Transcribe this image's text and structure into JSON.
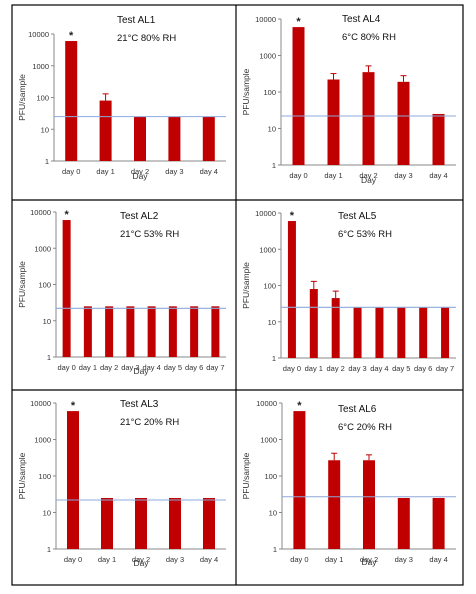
{
  "chart_data": [
    {
      "type": "bar",
      "title": "Test AL1",
      "subtitle": "21°C 80% RH",
      "xlabel": "Day",
      "ylabel": "PFU/sample",
      "yscale": "log",
      "ylim": [
        1,
        10000
      ],
      "yticks": [
        "1",
        "10",
        "100",
        "1000",
        "10000"
      ],
      "categories": [
        "day 0",
        "day 1",
        "day 2",
        "day 3",
        "day 4"
      ],
      "values": [
        6000,
        80,
        25,
        25,
        25
      ],
      "error_upper": [
        null,
        130,
        null,
        null,
        null
      ],
      "detection_limit": 25,
      "annotations": [
        {
          "category": "day 0",
          "text": "*"
        }
      ],
      "colors": {
        "bar": "#c00000",
        "limit_line": "#8ea9db"
      }
    },
    {
      "type": "bar",
      "title": "Test AL4",
      "subtitle": "6°C 80% RH",
      "xlabel": "Day",
      "ylabel": "PFU/sample",
      "yscale": "log",
      "ylim": [
        1,
        10000
      ],
      "yticks": [
        "1",
        "10",
        "100",
        "1000",
        "10000"
      ],
      "categories": [
        "day 0",
        "day 1",
        "day 2",
        "day 3",
        "day 4"
      ],
      "values": [
        6000,
        220,
        350,
        190,
        25
      ],
      "error_upper": [
        null,
        320,
        520,
        280,
        null
      ],
      "detection_limit": 22,
      "annotations": [
        {
          "category": "day 0",
          "text": "*"
        }
      ],
      "colors": {
        "bar": "#c00000",
        "limit_line": "#8ea9db"
      }
    },
    {
      "type": "bar",
      "title": "Test AL2",
      "subtitle": "21°C 53% RH",
      "xlabel": "Day",
      "ylabel": "PFU/sample",
      "yscale": "log",
      "ylim": [
        1,
        10000
      ],
      "yticks": [
        "1",
        "10",
        "100",
        "1000",
        "10000"
      ],
      "categories": [
        "day 0",
        "day 1",
        "day 2",
        "day 3",
        "day 4",
        "day 5",
        "day 6",
        "day 7"
      ],
      "values": [
        6000,
        25,
        25,
        25,
        25,
        25,
        25,
        25
      ],
      "error_upper": [
        null,
        null,
        null,
        null,
        null,
        null,
        null,
        null
      ],
      "detection_limit": 22,
      "annotations": [
        {
          "category": "day 0",
          "text": "*"
        }
      ],
      "colors": {
        "bar": "#c00000",
        "limit_line": "#8ea9db"
      }
    },
    {
      "type": "bar",
      "title": "Test AL5",
      "subtitle": "6°C 53% RH",
      "xlabel": "",
      "ylabel": "PFU/sample",
      "yscale": "log",
      "ylim": [
        1,
        10000
      ],
      "yticks": [
        "1",
        "10",
        "100",
        "1000",
        "10000"
      ],
      "categories": [
        "day 0",
        "day 1",
        "day 2",
        "day 3",
        "day 4",
        "day 5",
        "day 6",
        "day 7"
      ],
      "values": [
        6000,
        80,
        45,
        25,
        25,
        25,
        25,
        25
      ],
      "error_upper": [
        null,
        130,
        70,
        null,
        null,
        null,
        null,
        null
      ],
      "detection_limit": 25,
      "annotations": [
        {
          "category": "day 0",
          "text": "*"
        }
      ],
      "colors": {
        "bar": "#c00000",
        "limit_line": "#8ea9db"
      }
    },
    {
      "type": "bar",
      "title": "Test AL3",
      "subtitle": "21°C 20% RH",
      "xlabel": "Day",
      "ylabel": "PFU/sample",
      "yscale": "log",
      "ylim": [
        1,
        10000
      ],
      "yticks": [
        "1",
        "10",
        "100",
        "1000",
        "10000"
      ],
      "categories": [
        "day 0",
        "day 1",
        "day 2",
        "day 3",
        "day 4"
      ],
      "values": [
        6000,
        25,
        25,
        25,
        25
      ],
      "error_upper": [
        null,
        null,
        null,
        null,
        null
      ],
      "detection_limit": 22,
      "annotations": [
        {
          "category": "day 0",
          "text": "*"
        }
      ],
      "colors": {
        "bar": "#c00000",
        "limit_line": "#8ea9db"
      }
    },
    {
      "type": "bar",
      "title": "Test AL6",
      "subtitle": "6°C 20% RH",
      "xlabel": "Day",
      "ylabel": "PFU/sample",
      "yscale": "log",
      "ylim": [
        1,
        10000
      ],
      "yticks": [
        "1",
        "10",
        "100",
        "1000",
        "10000"
      ],
      "categories": [
        "day 0",
        "day 1",
        "day 2",
        "day 3",
        "day 4"
      ],
      "values": [
        6000,
        270,
        270,
        25,
        25
      ],
      "error_upper": [
        null,
        420,
        380,
        null,
        null
      ],
      "detection_limit": 27,
      "annotations": [
        {
          "category": "day 0",
          "text": "*"
        }
      ],
      "colors": {
        "bar": "#c00000",
        "limit_line": "#8ea9db"
      }
    }
  ]
}
